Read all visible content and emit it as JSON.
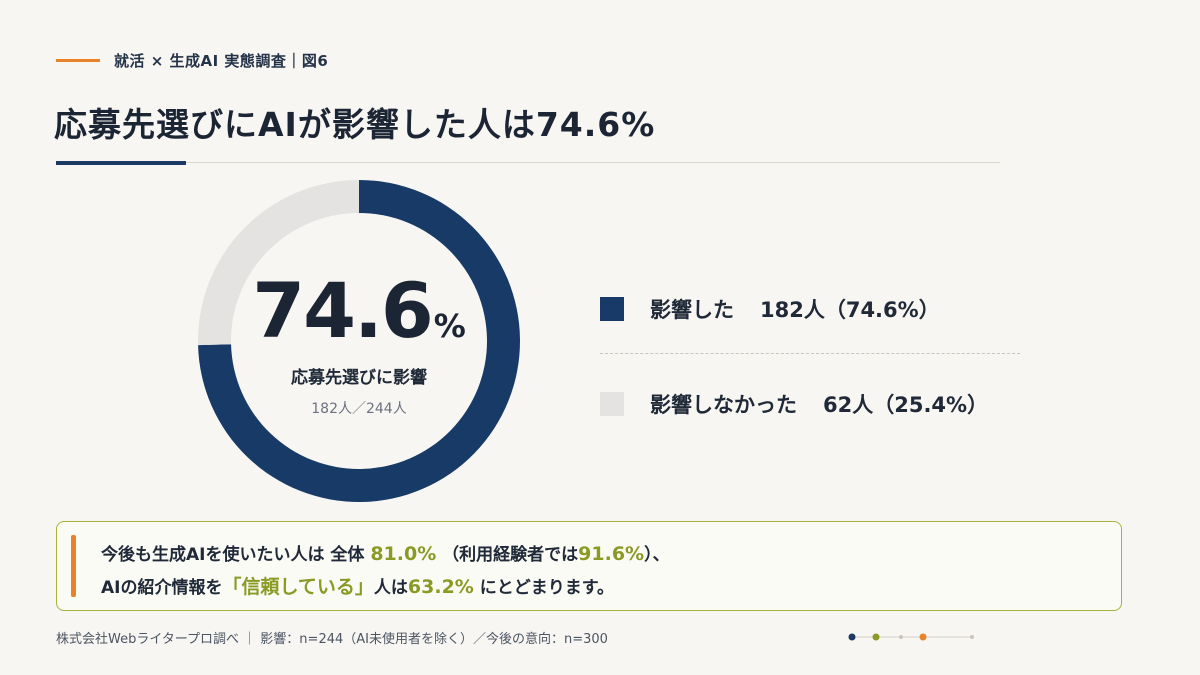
{
  "header": {
    "kicker": "就活 × 生成AI 実態調査｜図6",
    "title": "応募先選びにAIが影響した人は74.6%"
  },
  "colors": {
    "navy": "#173a66",
    "light_gray": "#e4e3e1",
    "orange": "#e8832a",
    "olive": "#8a9a25"
  },
  "center": {
    "value": "74.6",
    "unit": "%",
    "label": "応募先選びに影響",
    "sub": "182人／244人"
  },
  "chart_data": {
    "type": "pie",
    "total": 244,
    "series": [
      {
        "name": "影響した",
        "value": 182,
        "percent": 74.6,
        "color": "#173a66"
      },
      {
        "name": "影響しなかった",
        "value": 62,
        "percent": 25.4,
        "color": "#e4e3e1"
      }
    ]
  },
  "legend": [
    {
      "label": "影響した",
      "value": "182人（74.6%）"
    },
    {
      "label": "影響しなかった",
      "value": "62人（25.4%）"
    }
  ],
  "note": {
    "line1_prefix": "今後も生成AIを使いたい人は 全体",
    "line1_pct1": "81.0%",
    "line1_mid": "（利用経験者では",
    "line1_pct2": "91.6%",
    "line1_suffix": "）、",
    "line2_prefix": "AIの紹介情報を",
    "line2_quote": "「信頼している」",
    "line2_mid": "人は",
    "line2_pct": "63.2%",
    "line2_suffix": " にとどまります。"
  },
  "footer": {
    "source": "株式会社Webライタープロ調べ ｜ 影響：n=244（AI未使用者を除く）／今後の意向：n=300"
  }
}
